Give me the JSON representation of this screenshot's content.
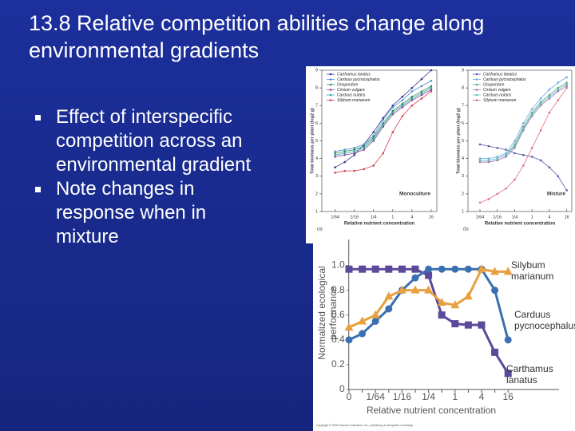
{
  "title": "13.8 Relative competition abilities change along environmental gradients",
  "bullets": [
    "Effect of interspecific competition across an environmental gradient",
    "Note changes in response when in mixture"
  ],
  "copyright": "Copyright © 2006 Pearson Education, Inc., publishing as Benjamin Cummings",
  "chart_data": [
    {
      "type": "line",
      "panel_label": "(a)",
      "annotation": "Monoculture",
      "x_label": "Relative nutrient concentration",
      "y_label": "Total biomass per plant (log2 g)",
      "xscale": "log",
      "xlim": [
        0.006,
        24
      ],
      "ylim": [
        1,
        9
      ],
      "xticks": [
        {
          "value": 0.015625,
          "label": "1/64"
        },
        {
          "value": 0.0625,
          "label": "1/16"
        },
        {
          "value": 0.25,
          "label": "1/4"
        },
        1,
        4,
        16
      ],
      "yticks": [
        1,
        2,
        3,
        4,
        5,
        6,
        7,
        8,
        9
      ],
      "x": [
        0.015625,
        0.03125,
        0.0625,
        0.125,
        0.25,
        0.5,
        1,
        2,
        4,
        8,
        16
      ],
      "series": [
        {
          "name": "Carthamus lanatus",
          "color": "#33338a",
          "values": [
            3.5,
            3.8,
            4.2,
            4.8,
            5.5,
            6.3,
            7,
            7.5,
            8,
            8.5,
            9
          ]
        },
        {
          "name": "Carduus pycnocephalus",
          "color": "#4a8fd0",
          "values": [
            4.4,
            4.5,
            4.6,
            4.8,
            5.3,
            6.2,
            6.9,
            7.3,
            7.8,
            8.1,
            8.4
          ]
        },
        {
          "name": "Onopordum",
          "color": "#2e8b57",
          "values": [
            4.3,
            4.4,
            4.5,
            4.7,
            5.2,
            6,
            6.7,
            7.1,
            7.5,
            7.8,
            8.1
          ]
        },
        {
          "name": "Cirsium vulgare",
          "color": "#8a4aa0",
          "values": [
            4.1,
            4.2,
            4.3,
            4.5,
            5,
            5.8,
            6.5,
            6.9,
            7.3,
            7.6,
            7.9
          ]
        },
        {
          "name": "Carduus nutans",
          "color": "#3aa5a5",
          "values": [
            4.2,
            4.3,
            4.4,
            4.6,
            5.1,
            5.9,
            6.6,
            7,
            7.4,
            7.7,
            8
          ]
        },
        {
          "name": "Silybum marianum",
          "color": "#d04050",
          "values": [
            3.2,
            3.3,
            3.3,
            3.4,
            3.6,
            4.3,
            5.5,
            6.4,
            7,
            7.4,
            7.8
          ]
        }
      ]
    },
    {
      "type": "line",
      "panel_label": "(b)",
      "annotation": "Mixture",
      "x_label": "Relative nutrient concentration",
      "y_label": "Total biomass per plant (log2 g)",
      "xscale": "log",
      "xlim": [
        0.006,
        24
      ],
      "ylim": [
        1,
        9
      ],
      "xticks": [
        {
          "value": 0.015625,
          "label": "1/64"
        },
        {
          "value": 0.0625,
          "label": "1/16"
        },
        {
          "value": 0.25,
          "label": "1/4"
        },
        1,
        4,
        16
      ],
      "yticks": [
        1,
        2,
        3,
        4,
        5,
        6,
        7,
        8,
        9
      ],
      "x": [
        0.015625,
        0.03125,
        0.0625,
        0.125,
        0.25,
        0.5,
        1,
        2,
        4,
        8,
        16
      ],
      "series": [
        {
          "name": "Carthamus lanatus",
          "color": "#5a5aa8",
          "values": [
            4.8,
            4.7,
            4.6,
            4.5,
            4.3,
            4.2,
            4.1,
            3.9,
            3.5,
            3,
            2.2
          ]
        },
        {
          "name": "Carduus pycnocephalus",
          "color": "#6aa8e0",
          "values": [
            4,
            4,
            4.1,
            4.3,
            5,
            6,
            6.8,
            7.4,
            7.9,
            8.3,
            8.6
          ]
        },
        {
          "name": "Onopordum",
          "color": "#5aab7a",
          "values": [
            3.9,
            3.9,
            4,
            4.2,
            4.8,
            5.8,
            6.6,
            7.2,
            7.6,
            8,
            8.3
          ]
        },
        {
          "name": "Cirsium vulgare",
          "color": "#a070b8",
          "values": [
            3.8,
            3.8,
            3.9,
            4.1,
            4.6,
            5.6,
            6.4,
            7,
            7.4,
            7.8,
            8.1
          ]
        },
        {
          "name": "Carduus nutans",
          "color": "#60c0c0",
          "values": [
            3.9,
            3.9,
            4,
            4.2,
            4.7,
            5.7,
            6.5,
            7.1,
            7.5,
            7.9,
            8.2
          ]
        },
        {
          "name": "Silybum marianum",
          "color": "#e07080",
          "values": [
            1.5,
            1.7,
            2,
            2.3,
            2.8,
            3.6,
            4.6,
            5.6,
            6.6,
            7.3,
            8
          ]
        }
      ]
    },
    {
      "type": "line",
      "x_label": "Relative nutrient concentration",
      "y_label": "Normalized ecological performance",
      "categories": [
        "0",
        null,
        "1/64",
        null,
        "1/16",
        null,
        "1/4",
        null,
        "1",
        null,
        "4",
        null,
        "16"
      ],
      "ylim": [
        0,
        1.1
      ],
      "yticks": [
        0,
        0.2,
        0.4,
        0.6,
        0.8,
        {
          "value": 1,
          "label": "1.0"
        }
      ],
      "series": [
        {
          "name": "Carthamus lanatus",
          "color": "#5b4a9b",
          "marker": "square",
          "values": [
            0.97,
            0.97,
            0.97,
            0.97,
            0.97,
            0.97,
            0.92,
            0.6,
            0.53,
            0.52,
            0.52,
            0.3,
            0.13
          ]
        },
        {
          "name": "Carduus pycnocephalus",
          "color": "#3a6fb0",
          "marker": "circle",
          "values": [
            0.4,
            0.45,
            0.55,
            0.65,
            0.8,
            0.9,
            0.97,
            0.97,
            0.97,
            0.97,
            0.97,
            0.8,
            0.4
          ]
        },
        {
          "name": "Silybum marianum",
          "color": "#e8a040",
          "marker": "triangle",
          "values": [
            0.5,
            0.55,
            0.6,
            0.75,
            0.8,
            0.8,
            0.8,
            0.7,
            0.68,
            0.75,
            0.97,
            0.95,
            0.95
          ]
        }
      ]
    }
  ]
}
